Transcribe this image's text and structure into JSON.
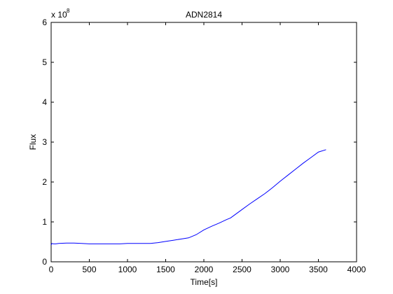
{
  "chart_data": {
    "type": "line",
    "title": "ADN2814",
    "xlabel": "Time[s]",
    "ylabel": "Flux",
    "y_multiplier_base": "x 10",
    "y_multiplier_exponent": "8",
    "xlim": [
      0,
      4000
    ],
    "ylim": [
      0,
      6
    ],
    "xticks": [
      0,
      500,
      1000,
      1500,
      2000,
      2500,
      3000,
      3500,
      4000
    ],
    "yticks": [
      0,
      1,
      2,
      3,
      4,
      5,
      6
    ],
    "grid": false,
    "series": [
      {
        "color": "#0000ff",
        "x": [
          0,
          10,
          30,
          60,
          100,
          200,
          300,
          400,
          500,
          600,
          700,
          800,
          900,
          1000,
          1100,
          1200,
          1300,
          1400,
          1500,
          1600,
          1700,
          1800,
          1900,
          2000,
          2100,
          2200,
          2300,
          2350,
          2400,
          2500,
          2600,
          2700,
          2800,
          2900,
          3000,
          3100,
          3200,
          3300,
          3400,
          3500,
          3600
        ],
        "y": [
          0.42,
          0.46,
          0.45,
          0.45,
          0.46,
          0.47,
          0.47,
          0.46,
          0.45,
          0.45,
          0.45,
          0.45,
          0.45,
          0.46,
          0.46,
          0.46,
          0.46,
          0.48,
          0.51,
          0.54,
          0.57,
          0.6,
          0.68,
          0.8,
          0.89,
          0.97,
          1.06,
          1.1,
          1.17,
          1.31,
          1.45,
          1.58,
          1.71,
          1.86,
          2.02,
          2.17,
          2.32,
          2.47,
          2.61,
          2.75,
          2.81
        ]
      }
    ]
  }
}
